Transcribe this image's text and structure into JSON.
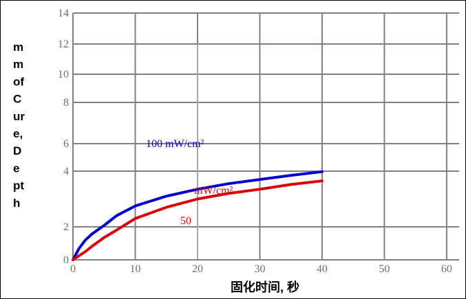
{
  "chart_data": {
    "type": "line",
    "xlabel": "固化时间, 秒",
    "ylabel_lines": [
      "m",
      "m",
      "of",
      "C",
      "ur",
      "e,",
      "D",
      "e",
      "pt",
      "h"
    ],
    "xlim": [
      0,
      62
    ],
    "ylim": [
      0,
      14
    ],
    "x_ticks": [
      {
        "value": 0,
        "label": "0"
      },
      {
        "value": 10,
        "label": "10"
      },
      {
        "value": 20,
        "label": "20"
      },
      {
        "value": 30,
        "label": "30"
      },
      {
        "value": 40,
        "label": "40"
      },
      {
        "value": 50,
        "label": "50"
      },
      {
        "value": 60,
        "label": "60"
      }
    ],
    "y_ticks": [
      {
        "value": 0,
        "label": "0"
      },
      {
        "value": 2,
        "label": "2"
      },
      {
        "value": 4,
        "label": "4"
      },
      {
        "value": 6,
        "label": "6"
      },
      {
        "value": 8,
        "label": "8"
      },
      {
        "value": 10,
        "label": "10"
      },
      {
        "value": 12,
        "label": "12"
      },
      {
        "value": 14,
        "label": "14"
      }
    ],
    "grid": true,
    "series": [
      {
        "name": "100 mW/cm²",
        "color": "#0000cc",
        "x": [
          0,
          1,
          2,
          3,
          5,
          7,
          10,
          15,
          20,
          25,
          30,
          35,
          40
        ],
        "y": [
          0,
          0.7,
          1.2,
          1.55,
          2.05,
          2.4,
          2.75,
          3.1,
          3.35,
          3.55,
          3.7,
          3.85,
          3.98
        ]
      },
      {
        "name": "50 mW/cm²",
        "label_parts": [
          "mW/cm²",
          "50"
        ],
        "color": "#dd0000",
        "x": [
          0,
          1,
          2,
          3,
          5,
          7,
          10,
          15,
          20,
          25,
          30,
          35,
          40
        ],
        "y": [
          0,
          0.25,
          0.5,
          0.8,
          1.35,
          1.8,
          2.3,
          2.7,
          3.0,
          3.2,
          3.35,
          3.52,
          3.65
        ]
      }
    ]
  }
}
